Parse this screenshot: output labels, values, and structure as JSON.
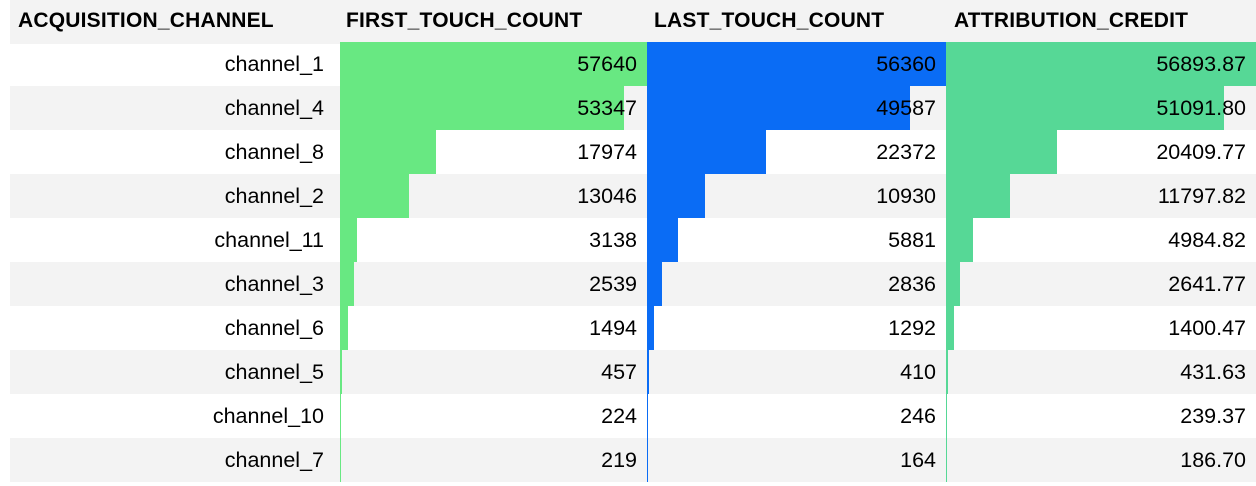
{
  "chart_data": {
    "type": "table",
    "columns": [
      "ACQUISITION_CHANNEL",
      "FIRST_TOUCH_COUNT",
      "LAST_TOUCH_COUNT",
      "ATTRIBUTION_CREDIT"
    ],
    "rows": [
      {
        "channel": "channel_1",
        "first_touch": 57640,
        "last_touch": 56360,
        "credit": "56893.87"
      },
      {
        "channel": "channel_4",
        "first_touch": 53347,
        "last_touch": 49587,
        "credit": "51091.80"
      },
      {
        "channel": "channel_8",
        "first_touch": 17974,
        "last_touch": 22372,
        "credit": "20409.77"
      },
      {
        "channel": "channel_2",
        "first_touch": 13046,
        "last_touch": 10930,
        "credit": "11797.82"
      },
      {
        "channel": "channel_11",
        "first_touch": 3138,
        "last_touch": 5881,
        "credit": "4984.82"
      },
      {
        "channel": "channel_3",
        "first_touch": 2539,
        "last_touch": 2836,
        "credit": "2641.77"
      },
      {
        "channel": "channel_6",
        "first_touch": 1494,
        "last_touch": 1292,
        "credit": "1400.47"
      },
      {
        "channel": "channel_5",
        "first_touch": 457,
        "last_touch": 410,
        "credit": "431.63"
      },
      {
        "channel": "channel_10",
        "first_touch": 224,
        "last_touch": 246,
        "credit": "239.37"
      },
      {
        "channel": "channel_7",
        "first_touch": 219,
        "last_touch": 164,
        "credit": "186.70"
      }
    ],
    "bar_colors": {
      "first_touch": "#68e882",
      "last_touch": "#0a6cf5",
      "credit": "#56d896"
    },
    "stripe_color": "#f3f3f3"
  }
}
